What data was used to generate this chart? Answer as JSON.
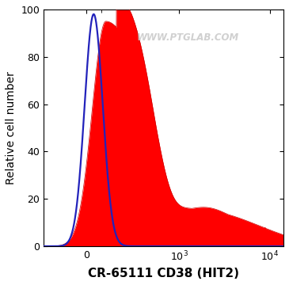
{
  "title": "",
  "xlabel": "CR-65111 CD38 (HIT2)",
  "ylabel": "Relative cell number",
  "ylim": [
    0,
    100
  ],
  "yticks": [
    0,
    20,
    40,
    60,
    80,
    100
  ],
  "watermark": "WWW.PTGLAB.COM",
  "watermark_color": "#c8c8c8",
  "fill_color_red": "#ff0000",
  "line_color_blue": "#2222bb",
  "xlabel_fontsize": 11,
  "ylabel_fontsize": 10,
  "linthresh": 300,
  "linscale": 0.45
}
